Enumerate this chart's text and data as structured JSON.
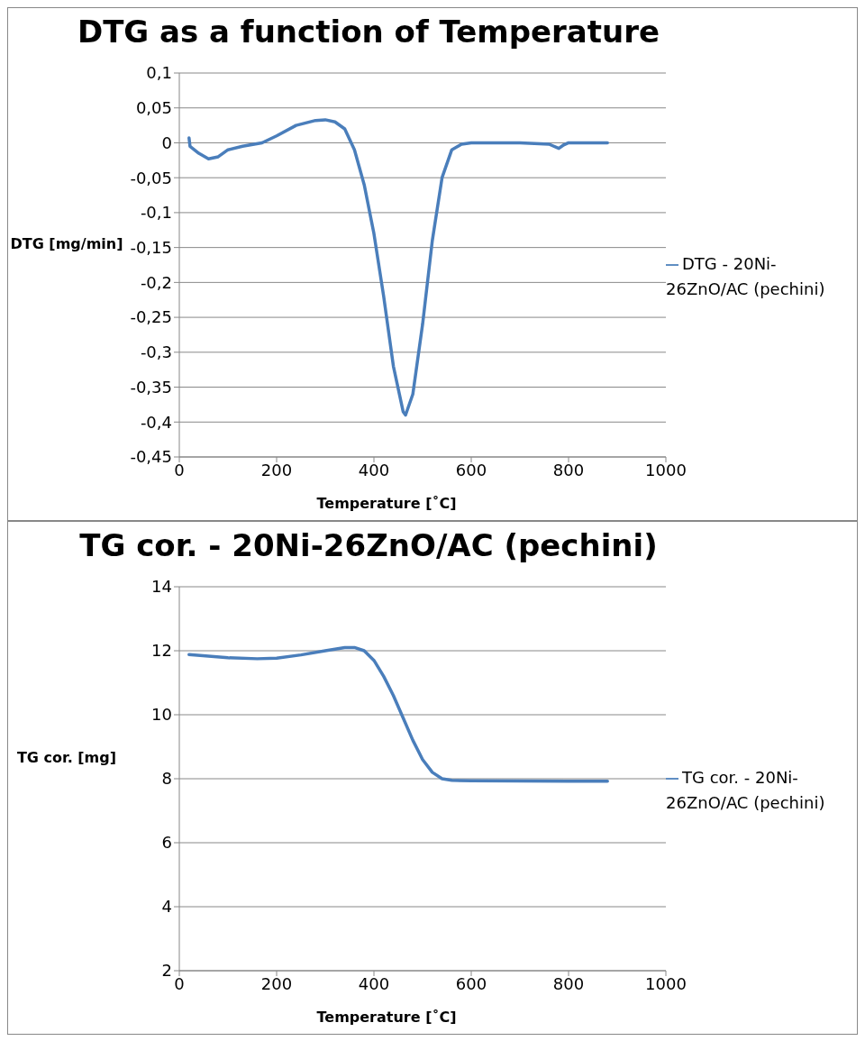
{
  "chart_data": [
    {
      "type": "line",
      "title": "DTG as a function of Temperature",
      "xlabel": "Temperature [˚C]",
      "ylabel": "DTG [mg/min]",
      "x": [
        20,
        22,
        40,
        60,
        80,
        100,
        130,
        170,
        200,
        240,
        280,
        300,
        320,
        340,
        360,
        380,
        400,
        420,
        440,
        460,
        465,
        480,
        500,
        520,
        540,
        560,
        580,
        600,
        700,
        760,
        780,
        790,
        800,
        880
      ],
      "series": [
        {
          "name": "DTG - 20Ni-26ZnO/AC (pechini)",
          "color": "#4a7ebb",
          "values": [
            0.007,
            -0.005,
            -0.015,
            -0.023,
            -0.02,
            -0.01,
            -0.005,
            0,
            0.01,
            0.025,
            0.032,
            0.033,
            0.03,
            0.02,
            -0.01,
            -0.06,
            -0.13,
            -0.22,
            -0.32,
            -0.385,
            -0.39,
            -0.36,
            -0.26,
            -0.14,
            -0.05,
            -0.01,
            -0.002,
            0,
            0,
            -0.002,
            -0.008,
            -0.003,
            0,
            0
          ]
        }
      ],
      "xlim": [
        0,
        1000
      ],
      "xticks": [
        0,
        200,
        400,
        600,
        800,
        1000
      ],
      "ylim": [
        -0.45,
        0.1
      ],
      "yticks": [
        {
          "value": -0.45,
          "label": "-0,45"
        },
        {
          "value": -0.4,
          "label": "-0,4"
        },
        {
          "value": -0.35,
          "label": "-0,35"
        },
        {
          "value": -0.3,
          "label": "-0,3"
        },
        {
          "value": -0.25,
          "label": "-0,25"
        },
        {
          "value": -0.2,
          "label": "-0,2"
        },
        {
          "value": -0.15,
          "label": "-0,15"
        },
        {
          "value": -0.1,
          "label": "-0,1"
        },
        {
          "value": -0.05,
          "label": "-0,05"
        },
        0,
        {
          "value": 0.05,
          "label": "0,05"
        },
        {
          "value": 0.1,
          "label": "0,1"
        }
      ],
      "grid": "y",
      "legend": "right",
      "marker": "none",
      "line_style": "solid"
    },
    {
      "type": "line",
      "title": "TG cor. - 20Ni-26ZnO/AC (pechini)",
      "xlabel": "Temperature [˚C]",
      "ylabel": "TG cor. [mg]",
      "x": [
        20,
        100,
        160,
        200,
        250,
        300,
        340,
        360,
        380,
        400,
        420,
        440,
        460,
        480,
        500,
        520,
        540,
        560,
        600,
        700,
        800,
        880
      ],
      "series": [
        {
          "name": "TG cor. - 20Ni-26ZnO/AC (pechini)",
          "color": "#4a7ebb",
          "values": [
            11.88,
            11.78,
            11.75,
            11.77,
            11.87,
            12.0,
            12.1,
            12.1,
            12.0,
            11.7,
            11.2,
            10.6,
            9.9,
            9.2,
            8.6,
            8.2,
            8.0,
            7.95,
            7.94,
            7.93,
            7.92,
            7.92
          ]
        }
      ],
      "xlim": [
        0,
        1000
      ],
      "xticks": [
        0,
        200,
        400,
        600,
        800,
        1000
      ],
      "ylim": [
        2,
        14
      ],
      "yticks": [
        2,
        4,
        6,
        8,
        10,
        12,
        14
      ],
      "grid": "y",
      "legend": "right",
      "marker": "none",
      "line_style": "solid"
    }
  ]
}
